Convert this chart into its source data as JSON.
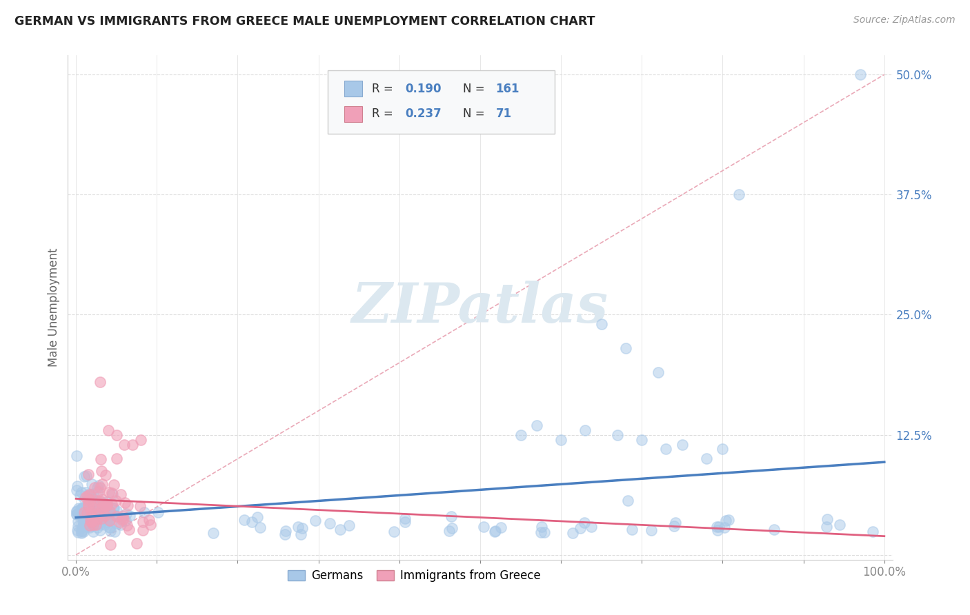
{
  "title": "GERMAN VS IMMIGRANTS FROM GREECE MALE UNEMPLOYMENT CORRELATION CHART",
  "source": "Source: ZipAtlas.com",
  "ylabel": "Male Unemployment",
  "background_color": "#ffffff",
  "german_color": "#a8c8e8",
  "greek_color": "#f0a0b8",
  "german_line_color": "#4a7fc0",
  "greek_line_color": "#e06080",
  "diag_line_color": "#e8a0b0",
  "german_R": 0.19,
  "german_N": 161,
  "greek_R": 0.237,
  "greek_N": 71,
  "legend_label_german": "Germans",
  "legend_label_greek": "Immigrants from Greece",
  "blue_text_color": "#4a7fc0",
  "red_text_color": "#c05060",
  "title_color": "#222222",
  "axis_label_color": "#666666",
  "tick_color": "#888888",
  "grid_color": "#dddddd",
  "spine_color": "#cccccc"
}
